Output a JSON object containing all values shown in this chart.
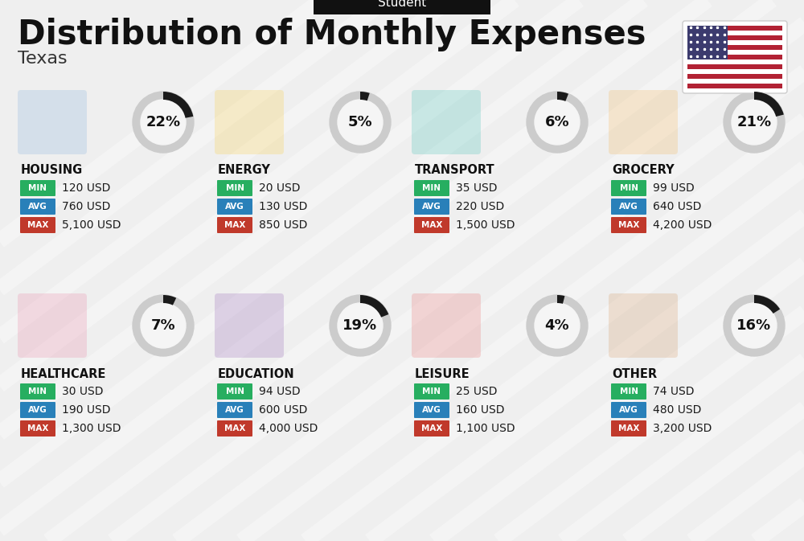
{
  "title": "Distribution of Monthly Expenses",
  "subtitle": "Student",
  "location": "Texas",
  "background_color": "#efefef",
  "title_color": "#111111",
  "categories": [
    {
      "name": "HOUSING",
      "percent": 22,
      "min": "120 USD",
      "avg": "760 USD",
      "max": "5,100 USD",
      "row": 0,
      "col": 0
    },
    {
      "name": "ENERGY",
      "percent": 5,
      "min": "20 USD",
      "avg": "130 USD",
      "max": "850 USD",
      "row": 0,
      "col": 1
    },
    {
      "name": "TRANSPORT",
      "percent": 6,
      "min": "35 USD",
      "avg": "220 USD",
      "max": "1,500 USD",
      "row": 0,
      "col": 2
    },
    {
      "name": "GROCERY",
      "percent": 21,
      "min": "99 USD",
      "avg": "640 USD",
      "max": "4,200 USD",
      "row": 0,
      "col": 3
    },
    {
      "name": "HEALTHCARE",
      "percent": 7,
      "min": "30 USD",
      "avg": "190 USD",
      "max": "1,300 USD",
      "row": 1,
      "col": 0
    },
    {
      "name": "EDUCATION",
      "percent": 19,
      "min": "94 USD",
      "avg": "600 USD",
      "max": "4,000 USD",
      "row": 1,
      "col": 1
    },
    {
      "name": "LEISURE",
      "percent": 4,
      "min": "25 USD",
      "avg": "160 USD",
      "max": "1,100 USD",
      "row": 1,
      "col": 2
    },
    {
      "name": "OTHER",
      "percent": 16,
      "min": "74 USD",
      "avg": "480 USD",
      "max": "3,200 USD",
      "row": 1,
      "col": 3
    }
  ],
  "min_color": "#27ae60",
  "avg_color": "#2980b9",
  "max_color": "#c0392b",
  "arc_color": "#1a1a1a",
  "ring_bg_color": "#cccccc",
  "ring_fill_color": "#f5f5f5",
  "stripe_colors_flag": [
    "#B22234",
    "#ffffff",
    "#B22234",
    "#ffffff",
    "#B22234",
    "#ffffff",
    "#B22234",
    "#ffffff",
    "#B22234",
    "#ffffff",
    "#B22234",
    "#ffffff",
    "#B22234"
  ],
  "flag_blue": "#3C3B6E",
  "flag_red": "#B22234"
}
